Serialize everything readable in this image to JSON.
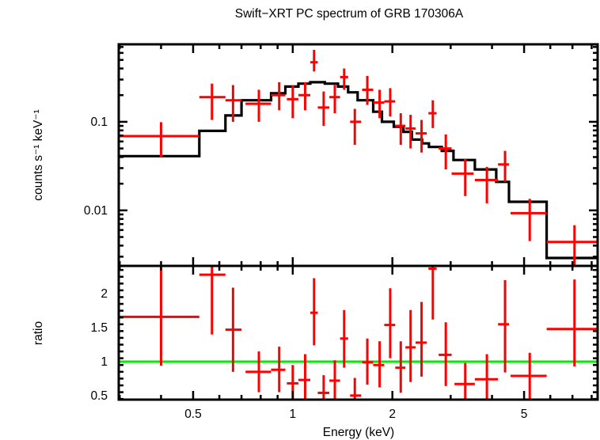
{
  "chart_data": [
    {
      "type": "scatter",
      "panel": "spectrum",
      "title": "Swift−XRT PC spectrum of GRB 170306A",
      "xlabel": "",
      "ylabel": "counts s⁻¹ keV⁻¹",
      "xscale": "log",
      "yscale": "log",
      "xlim": [
        0.298,
        8.34
      ],
      "ylim": [
        0.00236,
        0.75
      ],
      "yticks": [
        {
          "value": 0.1,
          "label": "0.1"
        },
        {
          "value": 0.01,
          "label": "0.01"
        }
      ],
      "data_color": "#ff0000",
      "model_color": "#000000",
      "series": [
        {
          "name": "data",
          "points": [
            {
              "x": 0.4,
              "xlo": 0.298,
              "xhi": 0.522,
              "y": 0.069,
              "ylo": 0.04,
              "yhi": 0.099
            },
            {
              "x": 0.57,
              "xlo": 0.522,
              "xhi": 0.626,
              "y": 0.19,
              "ylo": 0.105,
              "yhi": 0.27
            },
            {
              "x": 0.66,
              "xlo": 0.626,
              "xhi": 0.7,
              "y": 0.175,
              "ylo": 0.1,
              "yhi": 0.26
            },
            {
              "x": 0.79,
              "xlo": 0.72,
              "xhi": 0.86,
              "y": 0.16,
              "ylo": 0.1,
              "yhi": 0.23
            },
            {
              "x": 0.91,
              "xlo": 0.86,
              "xhi": 0.95,
              "y": 0.2,
              "ylo": 0.135,
              "yhi": 0.28
            },
            {
              "x": 1.0,
              "xlo": 0.96,
              "xhi": 1.04,
              "y": 0.18,
              "ylo": 0.11,
              "yhi": 0.26
            },
            {
              "x": 1.09,
              "xlo": 1.04,
              "xhi": 1.13,
              "y": 0.2,
              "ylo": 0.135,
              "yhi": 0.28
            },
            {
              "x": 1.16,
              "xlo": 1.13,
              "xhi": 1.19,
              "y": 0.47,
              "ylo": 0.37,
              "yhi": 0.65
            },
            {
              "x": 1.24,
              "xlo": 1.19,
              "xhi": 1.29,
              "y": 0.145,
              "ylo": 0.09,
              "yhi": 0.22
            },
            {
              "x": 1.34,
              "xlo": 1.29,
              "xhi": 1.39,
              "y": 0.19,
              "ylo": 0.125,
              "yhi": 0.26
            },
            {
              "x": 1.43,
              "xlo": 1.39,
              "xhi": 1.47,
              "y": 0.32,
              "ylo": 0.23,
              "yhi": 0.4
            },
            {
              "x": 1.54,
              "xlo": 1.49,
              "xhi": 1.61,
              "y": 0.1,
              "ylo": 0.055,
              "yhi": 0.14
            },
            {
              "x": 1.68,
              "xlo": 1.62,
              "xhi": 1.75,
              "y": 0.23,
              "ylo": 0.155,
              "yhi": 0.33
            },
            {
              "x": 1.83,
              "xlo": 1.75,
              "xhi": 1.89,
              "y": 0.165,
              "ylo": 0.11,
              "yhi": 0.23
            },
            {
              "x": 1.97,
              "xlo": 1.89,
              "xhi": 2.04,
              "y": 0.17,
              "ylo": 0.115,
              "yhi": 0.24
            },
            {
              "x": 2.12,
              "xlo": 2.04,
              "xhi": 2.19,
              "y": 0.09,
              "ylo": 0.055,
              "yhi": 0.125
            },
            {
              "x": 2.27,
              "xlo": 2.19,
              "xhi": 2.35,
              "y": 0.084,
              "ylo": 0.05,
              "yhi": 0.12
            },
            {
              "x": 2.45,
              "xlo": 2.35,
              "xhi": 2.54,
              "y": 0.074,
              "ylo": 0.045,
              "yhi": 0.105
            },
            {
              "x": 2.65,
              "xlo": 2.57,
              "xhi": 2.72,
              "y": 0.125,
              "ylo": 0.085,
              "yhi": 0.175
            },
            {
              "x": 2.9,
              "xlo": 2.76,
              "xhi": 3.02,
              "y": 0.05,
              "ylo": 0.029,
              "yhi": 0.072
            },
            {
              "x": 3.32,
              "xlo": 3.02,
              "xhi": 3.52,
              "y": 0.026,
              "ylo": 0.0145,
              "yhi": 0.038
            },
            {
              "x": 3.86,
              "xlo": 3.55,
              "xhi": 4.17,
              "y": 0.022,
              "ylo": 0.012,
              "yhi": 0.031
            },
            {
              "x": 4.38,
              "xlo": 4.17,
              "xhi": 4.5,
              "y": 0.033,
              "ylo": 0.021,
              "yhi": 0.047
            },
            {
              "x": 5.2,
              "xlo": 4.55,
              "xhi": 5.85,
              "y": 0.0093,
              "ylo": 0.0045,
              "yhi": 0.0135
            },
            {
              "x": 7.1,
              "xlo": 5.85,
              "xhi": 8.34,
              "y": 0.0044,
              "ylo": 0.0021,
              "yhi": 0.0068
            }
          ]
        },
        {
          "name": "model",
          "steps": [
            {
              "x0": 0.298,
              "x1": 0.522,
              "y": 0.041
            },
            {
              "x0": 0.522,
              "x1": 0.626,
              "y": 0.079
            },
            {
              "x0": 0.626,
              "x1": 0.7,
              "y": 0.118
            },
            {
              "x0": 0.7,
              "x1": 0.86,
              "y": 0.175
            },
            {
              "x0": 0.86,
              "x1": 0.95,
              "y": 0.21
            },
            {
              "x0": 0.95,
              "x1": 1.04,
              "y": 0.25
            },
            {
              "x0": 1.04,
              "x1": 1.13,
              "y": 0.27
            },
            {
              "x0": 1.13,
              "x1": 1.25,
              "y": 0.28
            },
            {
              "x0": 1.25,
              "x1": 1.37,
              "y": 0.27
            },
            {
              "x0": 1.37,
              "x1": 1.47,
              "y": 0.25
            },
            {
              "x0": 1.47,
              "x1": 1.57,
              "y": 0.215
            },
            {
              "x0": 1.57,
              "x1": 1.75,
              "y": 0.175
            },
            {
              "x0": 1.75,
              "x1": 1.86,
              "y": 0.13
            },
            {
              "x0": 1.86,
              "x1": 2.02,
              "y": 0.1
            },
            {
              "x0": 2.02,
              "x1": 2.16,
              "y": 0.088
            },
            {
              "x0": 2.16,
              "x1": 2.29,
              "y": 0.077
            },
            {
              "x0": 2.29,
              "x1": 2.46,
              "y": 0.063
            },
            {
              "x0": 2.46,
              "x1": 2.58,
              "y": 0.057
            },
            {
              "x0": 2.58,
              "x1": 2.82,
              "y": 0.052
            },
            {
              "x0": 2.82,
              "x1": 3.06,
              "y": 0.047
            },
            {
              "x0": 3.06,
              "x1": 3.55,
              "y": 0.037
            },
            {
              "x0": 3.55,
              "x1": 4.12,
              "y": 0.029
            },
            {
              "x0": 4.12,
              "x1": 4.5,
              "y": 0.021
            },
            {
              "x0": 4.5,
              "x1": 5.85,
              "y": 0.0125
            },
            {
              "x0": 5.85,
              "x1": 8.34,
              "y": 0.0029
            }
          ]
        }
      ]
    },
    {
      "type": "scatter",
      "panel": "ratio",
      "xlabel": "Energy (keV)",
      "ylabel": "ratio",
      "xscale": "log",
      "yscale": "linear",
      "xlim": [
        0.298,
        8.34
      ],
      "ylim": [
        0.44,
        2.41
      ],
      "xticks": [
        {
          "value": 0.5,
          "label": "0.5"
        },
        {
          "value": 1,
          "label": "1"
        },
        {
          "value": 2,
          "label": "2"
        },
        {
          "value": 5,
          "label": "5"
        }
      ],
      "yticks": [
        {
          "value": 0.5,
          "label": "0.5"
        },
        {
          "value": 1,
          "label": "1"
        },
        {
          "value": 1.5,
          "label": "1.5"
        },
        {
          "value": 2,
          "label": "2"
        }
      ],
      "reference_line": {
        "y": 1,
        "color": "#00ee00"
      },
      "data_color": "#ff0000",
      "series": [
        {
          "name": "ratio",
          "points": [
            {
              "x": 0.4,
              "xlo": 0.298,
              "xhi": 0.522,
              "y": 1.66,
              "ylo": 0.94,
              "yhi": 2.41
            },
            {
              "x": 0.57,
              "xlo": 0.522,
              "xhi": 0.626,
              "y": 2.28,
              "ylo": 1.4,
              "yhi": 2.41
            },
            {
              "x": 0.66,
              "xlo": 0.626,
              "xhi": 0.7,
              "y": 1.47,
              "ylo": 0.85,
              "yhi": 2.09
            },
            {
              "x": 0.79,
              "xlo": 0.72,
              "xhi": 0.86,
              "y": 0.85,
              "ylo": 0.55,
              "yhi": 1.15
            },
            {
              "x": 0.91,
              "xlo": 0.86,
              "xhi": 0.95,
              "y": 0.88,
              "ylo": 0.55,
              "yhi": 1.22
            },
            {
              "x": 1.0,
              "xlo": 0.96,
              "xhi": 1.04,
              "y": 0.68,
              "ylo": 0.44,
              "yhi": 0.95
            },
            {
              "x": 1.09,
              "xlo": 1.04,
              "xhi": 1.13,
              "y": 0.73,
              "ylo": 0.44,
              "yhi": 1.11
            },
            {
              "x": 1.16,
              "xlo": 1.13,
              "xhi": 1.19,
              "y": 1.72,
              "ylo": 1.24,
              "yhi": 2.23
            },
            {
              "x": 1.24,
              "xlo": 1.19,
              "xhi": 1.29,
              "y": 0.54,
              "ylo": 0.44,
              "yhi": 0.8
            },
            {
              "x": 1.34,
              "xlo": 1.29,
              "xhi": 1.39,
              "y": 0.72,
              "ylo": 0.44,
              "yhi": 1.02
            },
            {
              "x": 1.43,
              "xlo": 1.39,
              "xhi": 1.47,
              "y": 1.34,
              "ylo": 0.91,
              "yhi": 1.76
            },
            {
              "x": 1.54,
              "xlo": 1.49,
              "xhi": 1.61,
              "y": 0.5,
              "ylo": 0.44,
              "yhi": 0.76
            },
            {
              "x": 1.68,
              "xlo": 1.62,
              "xhi": 1.75,
              "y": 0.99,
              "ylo": 0.66,
              "yhi": 1.34
            },
            {
              "x": 1.83,
              "xlo": 1.75,
              "xhi": 1.89,
              "y": 0.95,
              "ylo": 0.62,
              "yhi": 1.3
            },
            {
              "x": 1.97,
              "xlo": 1.89,
              "xhi": 2.04,
              "y": 1.54,
              "ylo": 1.05,
              "yhi": 2.08
            },
            {
              "x": 2.12,
              "xlo": 2.04,
              "xhi": 2.19,
              "y": 0.91,
              "ylo": 0.54,
              "yhi": 1.3
            },
            {
              "x": 2.27,
              "xlo": 2.19,
              "xhi": 2.35,
              "y": 1.21,
              "ylo": 0.7,
              "yhi": 1.76
            },
            {
              "x": 2.45,
              "xlo": 2.35,
              "xhi": 2.54,
              "y": 1.28,
              "ylo": 0.78,
              "yhi": 1.88
            },
            {
              "x": 2.65,
              "xlo": 2.57,
              "xhi": 2.72,
              "y": 2.37,
              "ylo": 1.62,
              "yhi": 2.41
            },
            {
              "x": 2.9,
              "xlo": 2.76,
              "xhi": 3.02,
              "y": 1.1,
              "ylo": 0.64,
              "yhi": 1.58
            },
            {
              "x": 3.32,
              "xlo": 3.08,
              "xhi": 3.55,
              "y": 0.67,
              "ylo": 0.44,
              "yhi": 0.98
            },
            {
              "x": 3.86,
              "xlo": 3.55,
              "xhi": 4.17,
              "y": 0.74,
              "ylo": 0.44,
              "yhi": 1.11
            },
            {
              "x": 4.38,
              "xlo": 4.17,
              "xhi": 4.5,
              "y": 1.55,
              "ylo": 0.84,
              "yhi": 2.2
            },
            {
              "x": 5.2,
              "xlo": 4.55,
              "xhi": 5.85,
              "y": 0.79,
              "ylo": 0.44,
              "yhi": 1.13
            },
            {
              "x": 7.1,
              "xlo": 5.85,
              "xhi": 8.34,
              "y": 1.48,
              "ylo": 0.93,
              "yhi": 2.21
            }
          ]
        }
      ]
    }
  ]
}
